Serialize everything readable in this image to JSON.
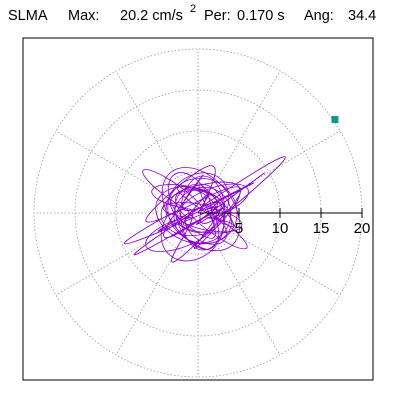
{
  "header": {
    "station": "SLMA",
    "max_label": "Max:",
    "max_value": "20.2 cm/s",
    "max_exp": "2",
    "per_label": "Per:",
    "per_value": "0.170 s",
    "ang_label": "Ang:",
    "ang_value": "34.4"
  },
  "chart_data": {
    "type": "scatter",
    "subtype": "polar-particle-motion",
    "title": "SLMA  Max: 20.2 cm/s2  Per: 0.170 s  Ang: 34.4",
    "radial_ticks": [
      "5",
      "10",
      "15",
      "20"
    ],
    "radial_tick_values": [
      5,
      10,
      15,
      20
    ],
    "r_max": 20,
    "angular_gridlines_deg": [
      0,
      30,
      60,
      90,
      120,
      150,
      180,
      210,
      240,
      270,
      300,
      330
    ],
    "grid": true,
    "grid_style": "dotted",
    "series": [
      {
        "line_color": "#8a00cc",
        "points_x": [
          0,
          2.1,
          -3.4,
          4.6,
          -5.2,
          6.8,
          -1.5,
          3.9,
          -6.4,
          8.3,
          -2.8,
          5.5,
          -9.1,
          11.2,
          -4.3,
          2.7,
          -7.6,
          12.5,
          -3.1,
          6.2,
          -13.8,
          16.4,
          -2.2,
          4.4,
          -10.7,
          9.6,
          -5.8,
          1.9,
          -12.9,
          3.8,
          0.5
        ],
        "points_y": [
          0,
          3.5,
          -2.8,
          1.6,
          4.2,
          -3.9,
          6.1,
          -5.4,
          2.3,
          4.8,
          -7.2,
          3.7,
          -4.5,
          5.9,
          -1.8,
          7.4,
          -6.6,
          8.1,
          -3.3,
          2.5,
          -8.7,
          11.4,
          -5.1,
          9.2,
          -4.0,
          6.3,
          -9.5,
          3.1,
          -5.7,
          1.2,
          0.3
        ]
      }
    ],
    "max_point": {
      "x": 16.7,
      "y": 11.4,
      "color": "#119988"
    }
  }
}
